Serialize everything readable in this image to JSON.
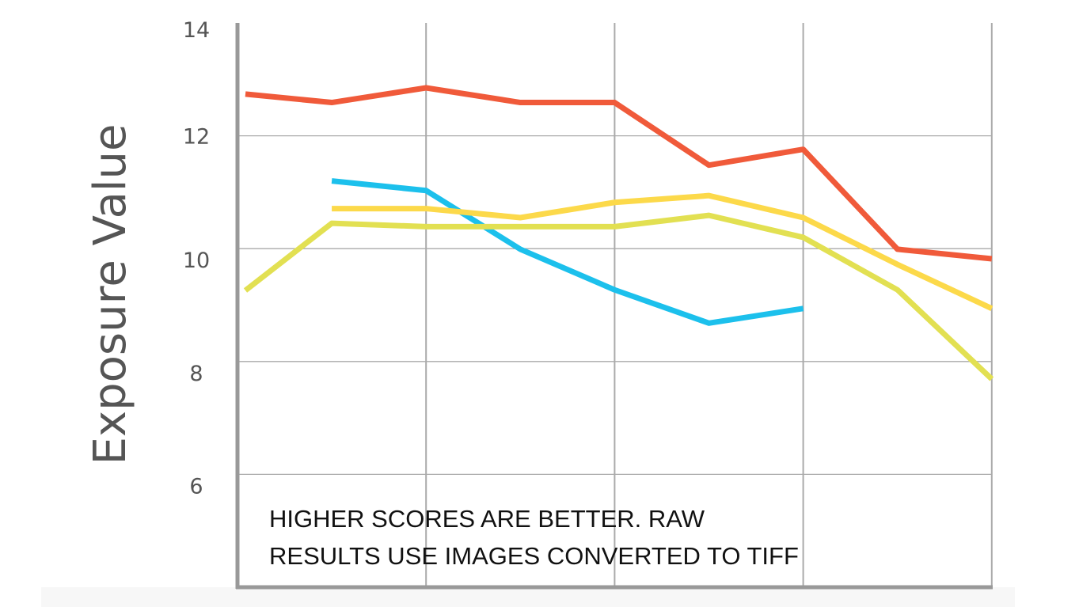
{
  "chart_data": {
    "type": "line",
    "title": "",
    "xlabel": "",
    "ylabel": "Exposure Value",
    "ylim": [
      4,
      14
    ],
    "yticks": [
      6,
      8,
      10,
      12,
      14
    ],
    "ytick_labels": [
      "6",
      "8",
      "10",
      "12",
      "14"
    ],
    "x": [
      0,
      1,
      2,
      3,
      4,
      5,
      6,
      7,
      8
    ],
    "grid": true,
    "annotation": [
      "HIGHER SCORES ARE BETTER. RAW",
      "RESULTS USE IMAGES CONVERTED TO TIFF"
    ],
    "series": [
      {
        "color": "#f05a3a",
        "values": [
          12.74,
          12.59,
          12.85,
          12.59,
          12.59,
          11.48,
          11.76,
          9.99,
          9.82
        ]
      },
      {
        "color": "#1cc0ec",
        "values": [
          null,
          11.2,
          11.03,
          9.99,
          9.27,
          8.68,
          8.94,
          null,
          null
        ]
      },
      {
        "color": "#fcd94a",
        "values": [
          null,
          10.71,
          10.71,
          10.55,
          10.82,
          10.94,
          10.55,
          9.72,
          8.94
        ]
      },
      {
        "color": "#e2e052",
        "values": [
          9.26,
          10.45,
          10.39,
          10.39,
          10.39,
          10.59,
          10.2,
          9.27,
          7.69
        ]
      }
    ]
  }
}
